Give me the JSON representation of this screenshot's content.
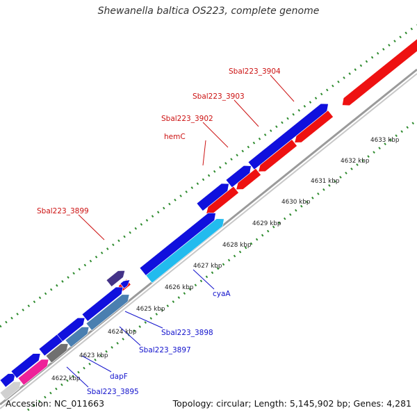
{
  "title": "Shewanella baltica OS223, complete genome",
  "accession_label": "Accession: NC_011663",
  "summary_label": "Topology: circular; Length: 5,145,902 bp; Genes: 4,281",
  "colors": {
    "backbone": "#888888",
    "tick_dots": "#2e8b2e",
    "forward_gene": "#1010dd",
    "reverse_gene": "#ee1111",
    "label_forward": "#1111cc",
    "label_reverse": "#cc1111",
    "cyan_gene": "#22bbee",
    "steel_gene": "#4a7fb0",
    "gray_gene": "#707070",
    "pink_gene": "#ee2299",
    "purple_gene": "#443388"
  },
  "scale_ticks": [
    {
      "label": "4622 kbp"
    },
    {
      "label": "4623 kbp"
    },
    {
      "label": "4624 kbp"
    },
    {
      "label": "4625 kbp"
    },
    {
      "label": "4626 kbp"
    },
    {
      "label": "4627 kbp"
    },
    {
      "label": "4628 kbp"
    },
    {
      "label": "4629 kbp"
    },
    {
      "label": "4630 kbp"
    },
    {
      "label": "4631 kbp"
    },
    {
      "label": "4632 kbp"
    },
    {
      "label": "4633 kbp"
    }
  ],
  "reverse_strand_labels": [
    {
      "text": "Sbal223_3904"
    },
    {
      "text": "Sbal223_3903"
    },
    {
      "text": "Sbal223_3902"
    },
    {
      "text": "hemC"
    },
    {
      "text": "Sbal223_3899"
    }
  ],
  "forward_strand_labels": [
    {
      "text": "cyaA"
    },
    {
      "text": "Sbal223_3898"
    },
    {
      "text": "Sbal223_3897"
    },
    {
      "text": "dapF"
    },
    {
      "text": "Sbal223_3895"
    }
  ]
}
